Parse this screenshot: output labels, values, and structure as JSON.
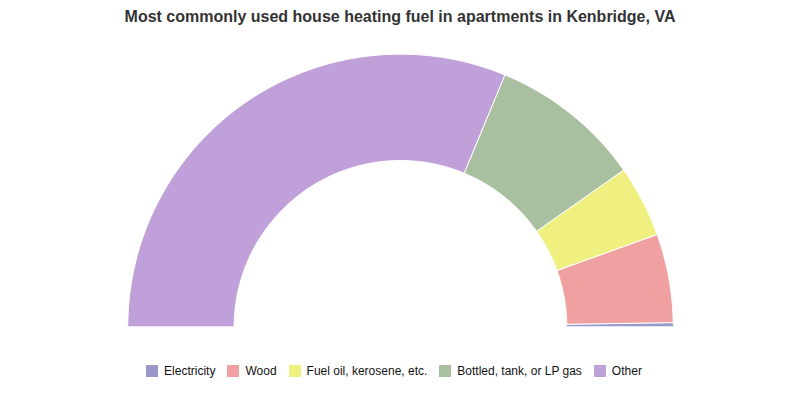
{
  "chart_data": {
    "type": "pie",
    "title": "Most commonly used house heating fuel in apartments in Kenbridge, VA",
    "categories": [
      "Electricity",
      "Wood",
      "Fuel oil, kerosene, etc.",
      "Bottled, tank, or LP gas",
      "Other"
    ],
    "values": [
      0.5,
      10.5,
      8.5,
      18.0,
      62.5
    ],
    "colors": [
      "#9999cc",
      "#f0a0a0",
      "#f0f080",
      "#a8c0a0",
      "#c0a0d8"
    ],
    "legend": "bottom"
  }
}
